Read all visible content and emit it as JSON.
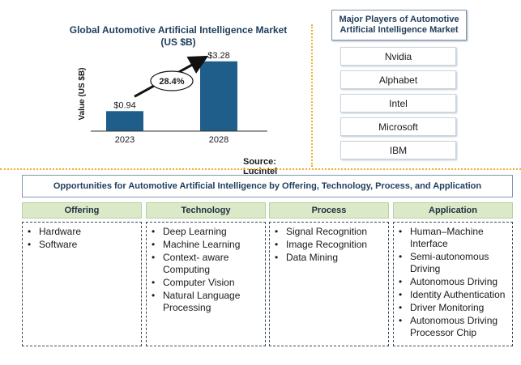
{
  "chart_data": {
    "type": "bar",
    "title": "Global Automotive Artificial Intelligence Market (US $B)",
    "ylabel": "Value (US $B)",
    "categories": [
      "2023",
      "2028"
    ],
    "values": [
      0.94,
      3.28
    ],
    "value_labels": [
      "$0.94",
      "$3.28"
    ],
    "ylim": [
      0,
      3.5
    ],
    "cagr_label": "28.4%",
    "bar_color": "#1f5e8a",
    "grid": false
  },
  "source": "Source: Lucintel",
  "players": {
    "title": "Major Players of Automotive Artificial Intelligence Market",
    "items": [
      "Nvidia",
      "Alphabet",
      "Intel",
      "Microsoft",
      "IBM"
    ]
  },
  "opportunities": {
    "title": "Opportunities for Automotive Artificial Intelligence by Offering, Technology, Process, and Application",
    "columns": [
      {
        "header": "Offering",
        "items": [
          "Hardware",
          "Software"
        ]
      },
      {
        "header": "Technology",
        "items": [
          "Deep Learning",
          "Machine Learning",
          "Context- aware Computing",
          "Computer Vision",
          "Natural Language Processing"
        ]
      },
      {
        "header": "Process",
        "items": [
          "Signal Recognition",
          "Image Recognition",
          "Data Mining"
        ]
      },
      {
        "header": "Application",
        "items": [
          "Human–Machine Interface",
          "Semi-autonomous Driving",
          "Autonomous Driving",
          "Identity Authentication",
          "Driver Monitoring",
          "Autonomous Driving Processor Chip"
        ]
      }
    ]
  }
}
